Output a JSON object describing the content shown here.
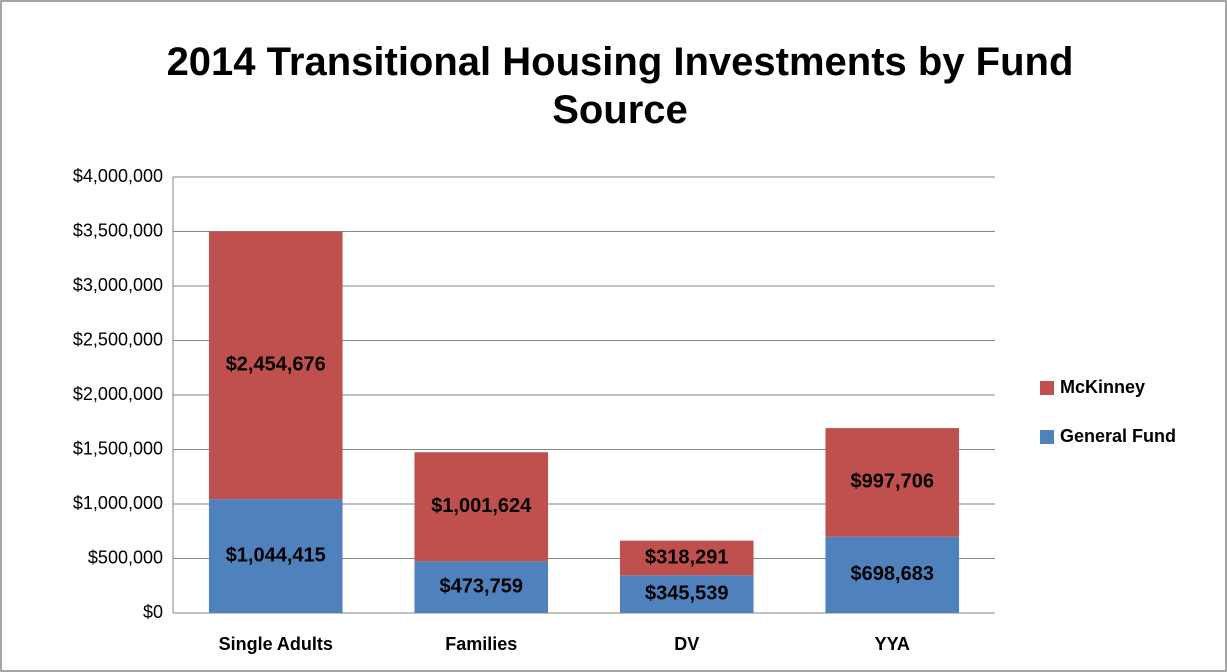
{
  "chart_data": {
    "type": "stacked_bar",
    "title": "2014 Transitional Housing Investments by Fund Source",
    "categories": [
      "Single Adults",
      "Families",
      "DV",
      "YYA"
    ],
    "series": [
      {
        "name": "General Fund",
        "color": "#4f81bd",
        "values": [
          1044415,
          473759,
          345539,
          698683
        ],
        "value_labels": [
          "$1,044,415",
          "$473,759",
          "$345,539",
          "$698,683"
        ]
      },
      {
        "name": "McKinney",
        "color": "#c0504d",
        "values": [
          2454676,
          1001624,
          318291,
          997706
        ],
        "value_labels": [
          "$2,454,676",
          "$1,001,624",
          "$318,291",
          "$997,706"
        ]
      }
    ],
    "ylim": [
      0,
      4000000
    ],
    "yticks": [
      {
        "value": 0,
        "label": "$0"
      },
      {
        "value": 500000,
        "label": "$500,000"
      },
      {
        "value": 1000000,
        "label": "$1,000,000"
      },
      {
        "value": 1500000,
        "label": "$1,500,000"
      },
      {
        "value": 2000000,
        "label": "$2,000,000"
      },
      {
        "value": 2500000,
        "label": "$2,500,000"
      },
      {
        "value": 3000000,
        "label": "$3,000,000"
      },
      {
        "value": 3500000,
        "label": "$3,500,000"
      },
      {
        "value": 4000000,
        "label": "$4,000,000"
      }
    ],
    "grid": true,
    "legend": "right"
  }
}
